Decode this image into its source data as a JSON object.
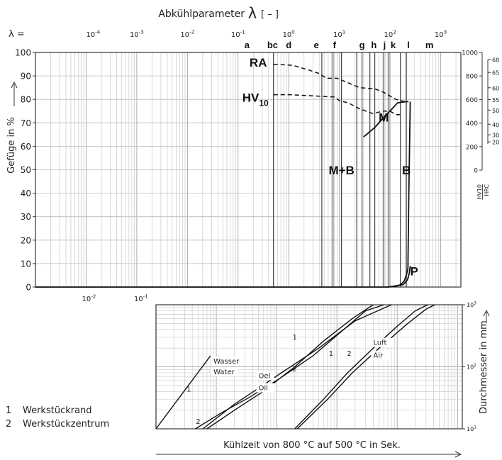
{
  "chart_data": [
    {
      "type": "line",
      "title": "Abkühlparameter",
      "title_symbol": "λ",
      "title_unit": "[ – ]",
      "lambda_label": "λ =",
      "lambda_ticks": [
        {
          "base": "10",
          "exp": "-4",
          "value": 0.0001
        },
        {
          "base": "10",
          "exp": "-3",
          "value": 0.001
        },
        {
          "base": "10",
          "exp": "-2",
          "value": 0.01
        },
        {
          "base": "10",
          "exp": "-1",
          "value": 0.1
        },
        {
          "base": "10",
          "exp": "0",
          "value": 1
        },
        {
          "base": "10",
          "exp": "1",
          "value": 10
        },
        {
          "base": "10",
          "exp": "2",
          "value": 100
        },
        {
          "base": "10",
          "exp": "3",
          "value": 1000
        }
      ],
      "bottom_ticks": [
        {
          "base": "10",
          "exp": "-2",
          "value": 0.0001
        },
        {
          "base": "10",
          "exp": "-1",
          "value": 0.001
        }
      ],
      "xscale": "log",
      "xlim": [
        1e-05,
        2500
      ],
      "ylabel": "Gefüge in %",
      "ylim": [
        0,
        100
      ],
      "yticks": [
        0,
        10,
        20,
        30,
        40,
        50,
        60,
        70,
        80,
        90,
        100
      ],
      "grid": true,
      "letter_markers": [
        {
          "label": "a",
          "x": 0.15
        },
        {
          "label": "bc",
          "x": 0.48
        },
        {
          "label": "d",
          "x": 1.0
        },
        {
          "label": "e",
          "x": 3.5
        },
        {
          "label": "f",
          "x": 8.0
        },
        {
          "label": "g",
          "x": 28
        },
        {
          "label": "h",
          "x": 48
        },
        {
          "label": "j",
          "x": 78
        },
        {
          "label": "k",
          "x": 115
        },
        {
          "label": "l",
          "x": 230
        },
        {
          "label": "m",
          "x": 600
        }
      ],
      "vertical_lines": [
        0.5,
        4.5,
        7.5,
        11,
        22,
        28,
        40,
        50,
        75,
        95,
        160,
        210
      ],
      "phase_labels": [
        {
          "label": "M+B",
          "x": 11,
          "y": 48
        },
        {
          "label": "B",
          "x": 210,
          "y": 48
        },
        {
          "label": "P",
          "x": 300,
          "y": 5
        },
        {
          "label": "M",
          "x": 75,
          "y": 70.5
        },
        {
          "label": "RA",
          "x": 0.25,
          "y": 94
        },
        {
          "label": "HV",
          "sub": "10",
          "x": 0.22,
          "y": 79
        }
      ],
      "right_axis": {
        "label_hv": "HV10",
        "label_hrc": "HRC",
        "hv_ticks": [
          {
            "label": "1000",
            "hv": 1000
          },
          {
            "label": "800",
            "hv": 800
          },
          {
            "label": "600",
            "hv": 600
          },
          {
            "label": "400",
            "hv": 400
          },
          {
            "label": "200",
            "hv": 200
          },
          {
            "label": "0",
            "hv": 0
          }
        ],
        "hrc_ticks": [
          {
            "label": "68",
            "hv": 940
          },
          {
            "label": "65",
            "hv": 830
          },
          {
            "label": "60",
            "hv": 700
          },
          {
            "label": "55",
            "hv": 600
          },
          {
            "label": "50",
            "hv": 510
          },
          {
            "label": "40",
            "hv": 390
          },
          {
            "label": "30",
            "hv": 300
          },
          {
            "label": "20",
            "hv": 240
          }
        ]
      },
      "series": [
        {
          "name": "RA",
          "style": "dashed",
          "x": [
            0.5,
            1.2,
            2.5,
            4.0,
            5.5,
            9.0,
            15,
            25,
            50,
            75,
            130,
            200,
            230
          ],
          "y": [
            95,
            94.5,
            92.5,
            91,
            89,
            89,
            87,
            85,
            84.5,
            83,
            80,
            79,
            79
          ]
        },
        {
          "name": "HV10",
          "style": "dashed",
          "x": [
            0.5,
            1.0,
            3.0,
            8.0,
            10,
            15,
            25,
            45,
            75,
            100,
            130,
            180
          ],
          "y": [
            82,
            82,
            81.5,
            81,
            79.5,
            78.5,
            76,
            74,
            75,
            75,
            73.5,
            73.5
          ]
        },
        {
          "name": "M",
          "style": "solid",
          "x": [
            30,
            50,
            80,
            110,
            140,
            200,
            230
          ],
          "y": [
            64,
            68,
            73,
            76,
            78.5,
            79,
            79
          ]
        },
        {
          "name": "B",
          "style": "solid",
          "x": [
            90,
            130,
            160,
            190,
            210,
            225,
            235,
            250
          ],
          "y": [
            0,
            0.3,
            1,
            2.5,
            5,
            8,
            40,
            79
          ]
        },
        {
          "name": "P",
          "style": "solid",
          "x": [
            1e-05,
            90,
            180,
            220,
            240,
            250
          ],
          "y": [
            0,
            0,
            1,
            3,
            6,
            9
          ]
        }
      ]
    },
    {
      "type": "line",
      "xlabel": "Kühlzeit von 800 °C auf 500 °C in Sek.",
      "ylabel": "Durchmesser in mm",
      "xscale": "log",
      "yscale": "log",
      "xlim": [
        0.1,
        12000
      ],
      "ylim": [
        10,
        1000
      ],
      "yticks": [
        {
          "base": "10",
          "exp": "1",
          "value": 10
        },
        {
          "base": "10",
          "exp": "2",
          "value": 100
        },
        {
          "base": "10",
          "exp": "3",
          "value": 1000
        }
      ],
      "grid": true,
      "legend": [
        {
          "key": "1",
          "label": "Werkstückrand"
        },
        {
          "key": "2",
          "label": "Werkstückzentrum"
        }
      ],
      "medium_labels": [
        {
          "label": "Wasser",
          "x": 0.9,
          "y": 112
        },
        {
          "label": "Water",
          "x": 0.9,
          "y": 76
        },
        {
          "label": "Oel",
          "x": 5,
          "y": 66
        },
        {
          "label": "Oil",
          "x": 5,
          "y": 42
        },
        {
          "label": "Luft",
          "x": 400,
          "y": 225
        },
        {
          "label": "Air",
          "x": 400,
          "y": 140
        }
      ],
      "curve_labels": [
        {
          "label": "1",
          "x": 0.35,
          "y": 40
        },
        {
          "label": "2",
          "x": 0.5,
          "y": 12
        },
        {
          "label": "1",
          "x": 20,
          "y": 275
        },
        {
          "label": "2",
          "x": 20,
          "y": 85
        },
        {
          "label": "1",
          "x": 80,
          "y": 150
        },
        {
          "label": "2",
          "x": 160,
          "y": 150
        }
      ],
      "series": [
        {
          "name": "1",
          "x": [
            0.1,
            0.8
          ],
          "y": [
            10,
            150
          ]
        },
        {
          "name": "1",
          "x": [
            0.7,
            2,
            6,
            20,
            60,
            180,
            400
          ],
          "y": [
            10,
            20,
            40,
            100,
            260,
            600,
            1000
          ]
        },
        {
          "name": "2",
          "x": [
            0.45,
            1.2,
            3.5,
            10,
            40,
            150,
            300,
            600
          ],
          "y": [
            10,
            18,
            32,
            60,
            150,
            450,
            800,
            1000
          ]
        },
        {
          "name": "2",
          "x": [
            0.6,
            2,
            5,
            12,
            50,
            200,
            800
          ],
          "y": [
            10,
            25,
            45,
            80,
            200,
            550,
            1000
          ]
        },
        {
          "name": "1",
          "x": [
            20,
            60,
            150,
            400,
            1000,
            2000,
            3200
          ],
          "y": [
            10,
            30,
            80,
            200,
            450,
            800,
            1000
          ]
        },
        {
          "name": "2",
          "x": [
            22,
            70,
            180,
            500,
            1500,
            3000,
            4200
          ],
          "y": [
            10,
            30,
            80,
            200,
            500,
            850,
            1000
          ]
        }
      ]
    }
  ]
}
